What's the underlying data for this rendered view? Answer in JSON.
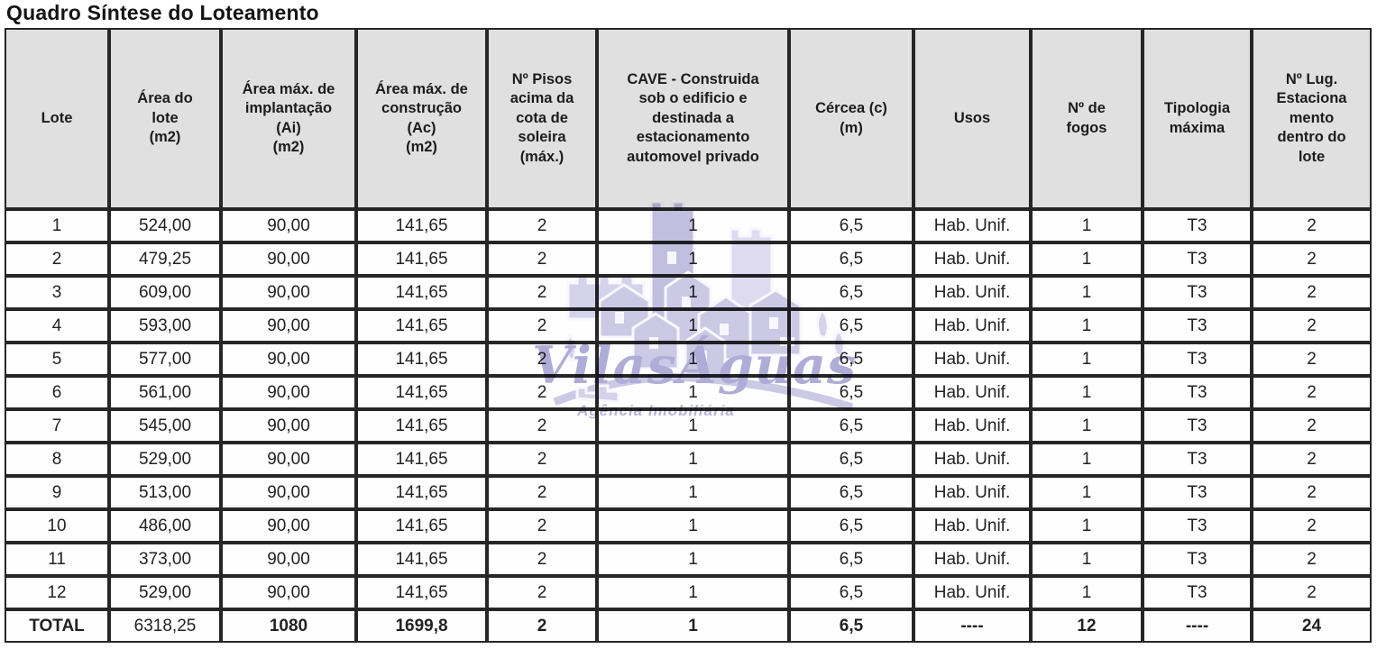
{
  "title": "Quadro Síntese do Loteamento",
  "watermark": {
    "name": "VilasÁguas",
    "tagline": "Agência Imobiliária",
    "color": "#7d78bd"
  },
  "table": {
    "columns": [
      "Lote",
      "Área do\nlote\n(m2)",
      "Área máx. de\nimplantação\n(Ai)\n(m2)",
      "Área máx. de\nconstrução\n(Ac)\n(m2)",
      "Nº Pisos\nacima da\ncota de\nsoleira\n(máx.)",
      "CAVE - Construida\nsob o edificio e\ndestinada a\nestacionamento\nautomovel privado",
      "Cércea (c)\n(m)",
      "Usos",
      "Nº de\nfogos",
      "Tipologia\nmáxima",
      "Nº Lug.\nEstaciona\nmento\ndentro do\nlote"
    ],
    "rows": [
      [
        "1",
        "524,00",
        "90,00",
        "141,65",
        "2",
        "1",
        "6,5",
        "Hab. Unif.",
        "1",
        "T3",
        "2"
      ],
      [
        "2",
        "479,25",
        "90,00",
        "141,65",
        "2",
        "1",
        "6,5",
        "Hab. Unif.",
        "1",
        "T3",
        "2"
      ],
      [
        "3",
        "609,00",
        "90,00",
        "141,65",
        "2",
        "1",
        "6,5",
        "Hab. Unif.",
        "1",
        "T3",
        "2"
      ],
      [
        "4",
        "593,00",
        "90,00",
        "141,65",
        "2",
        "1",
        "6,5",
        "Hab. Unif.",
        "1",
        "T3",
        "2"
      ],
      [
        "5",
        "577,00",
        "90,00",
        "141,65",
        "2",
        "1",
        "6,5",
        "Hab. Unif.",
        "1",
        "T3",
        "2"
      ],
      [
        "6",
        "561,00",
        "90,00",
        "141,65",
        "2",
        "1",
        "6,5",
        "Hab. Unif.",
        "1",
        "T3",
        "2"
      ],
      [
        "7",
        "545,00",
        "90,00",
        "141,65",
        "2",
        "1",
        "6,5",
        "Hab. Unif.",
        "1",
        "T3",
        "2"
      ],
      [
        "8",
        "529,00",
        "90,00",
        "141,65",
        "2",
        "1",
        "6,5",
        "Hab. Unif.",
        "1",
        "T3",
        "2"
      ],
      [
        "9",
        "513,00",
        "90,00",
        "141,65",
        "2",
        "1",
        "6,5",
        "Hab. Unif.",
        "1",
        "T3",
        "2"
      ],
      [
        "10",
        "486,00",
        "90,00",
        "141,65",
        "2",
        "1",
        "6,5",
        "Hab. Unif.",
        "1",
        "T3",
        "2"
      ],
      [
        "11",
        "373,00",
        "90,00",
        "141,65",
        "2",
        "1",
        "6,5",
        "Hab. Unif.",
        "1",
        "T3",
        "2"
      ],
      [
        "12",
        "529,00",
        "90,00",
        "141,65",
        "2",
        "1",
        "6,5",
        "Hab. Unif.",
        "1",
        "T3",
        "2"
      ]
    ],
    "total": [
      "TOTAL",
      "6318,25",
      "1080",
      "1699,8",
      "2",
      "1",
      "6,5",
      "----",
      "12",
      "----",
      "24"
    ]
  }
}
